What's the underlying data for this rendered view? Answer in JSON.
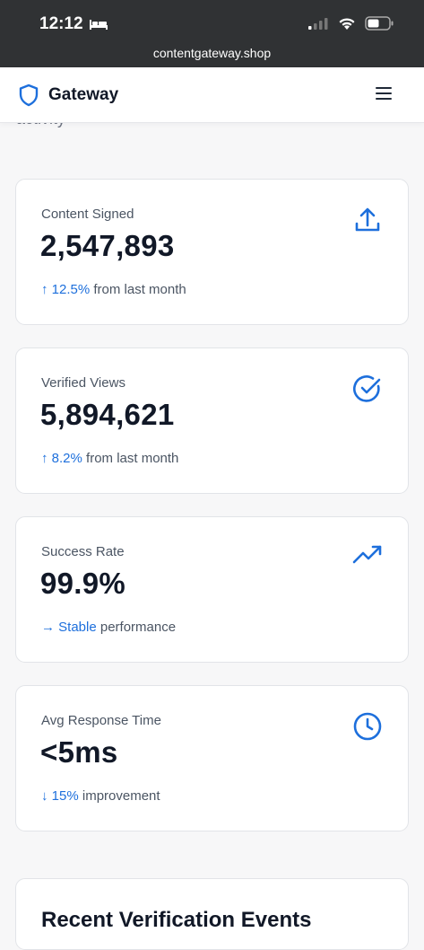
{
  "status": {
    "time": "12:12"
  },
  "browser": {
    "url": "contentgateway.shop"
  },
  "appbar": {
    "title": "Gateway"
  },
  "partial_heading": "activity",
  "cards": [
    {
      "label": "Content Signed",
      "value": "2,547,893",
      "change": "↑ 12.5%",
      "suffix": " from last month",
      "icon": "upload-icon"
    },
    {
      "label": "Verified Views",
      "value": "5,894,621",
      "change": "↑ 8.2%",
      "suffix": " from last month",
      "icon": "check-circle-icon"
    },
    {
      "label": "Success Rate",
      "value": "99.9%",
      "change": "→ Stable",
      "suffix": " performance",
      "icon": "trending-up-icon"
    },
    {
      "label": "Avg Response Time",
      "value": "<5ms",
      "change": "↓ 15%",
      "suffix": " improvement",
      "icon": "clock-icon"
    }
  ],
  "recent": {
    "title": "Recent Verification Events"
  },
  "colors": {
    "accent": "#1d6fdc",
    "statusbar": "#303234"
  }
}
